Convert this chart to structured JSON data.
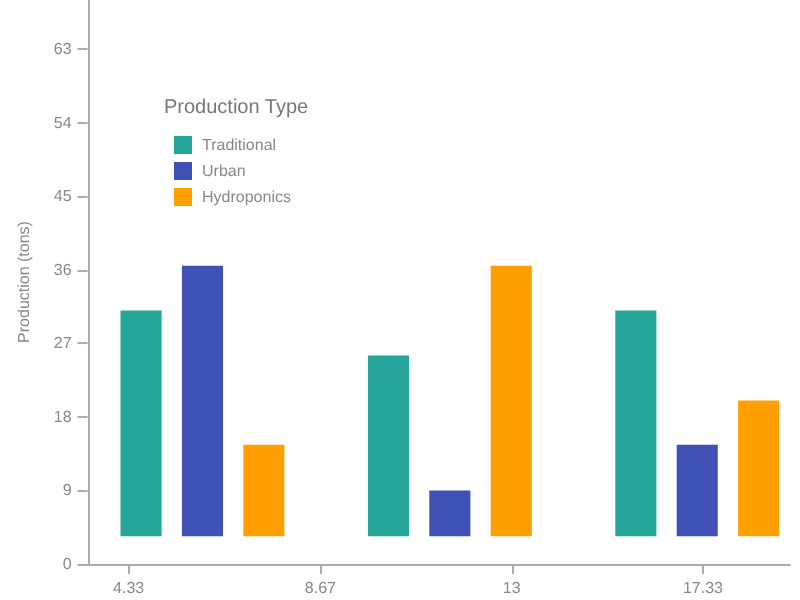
{
  "chart_data": {
    "type": "bar",
    "ylabel": "Production (tons)",
    "legend_title": "Production Type",
    "x": [
      6,
      11.6,
      17.2
    ],
    "xlim": [
      3.4,
      19.3
    ],
    "xticks": [
      4.33,
      8.67,
      13,
      17.33
    ],
    "ylim": [
      0,
      69
    ],
    "yticks": [
      0,
      9,
      18,
      27,
      36,
      45,
      54,
      63
    ],
    "series": [
      {
        "name": "Traditional",
        "color": "#26a69a",
        "base": [
          3.4,
          3.4,
          3.4
        ],
        "values": [
          27.6,
          22.1,
          27.6
        ]
      },
      {
        "name": "Urban",
        "color": "#3f51b5",
        "base": [
          3.4,
          3.4,
          3.4
        ],
        "values": [
          33.1,
          5.6,
          11.2
        ]
      },
      {
        "name": "Hydroponics",
        "color": "#ffa000",
        "base": [
          3.4,
          3.4,
          3.4
        ],
        "values": [
          11.2,
          33.1,
          16.6
        ]
      }
    ],
    "grid": false,
    "legend": "top left"
  }
}
